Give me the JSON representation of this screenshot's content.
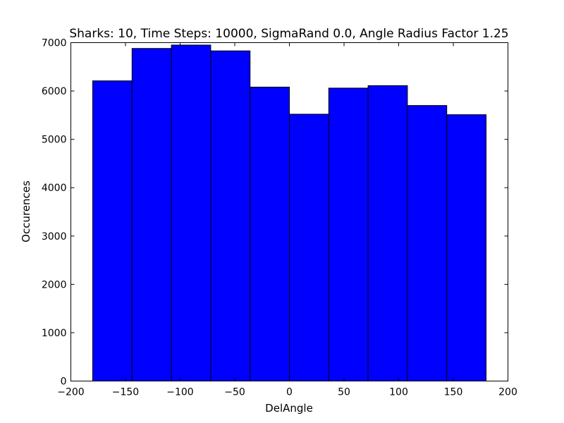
{
  "chart_data": {
    "type": "bar",
    "title": "Sharks: 10, Time Steps: 10000, SigmaRand 0.0, Angle Radius Factor 1.25",
    "xlabel": "DelAngle",
    "ylabel": "Occurences",
    "xlim": [
      -200,
      200
    ],
    "ylim": [
      0,
      7000
    ],
    "xticks": [
      -200,
      -150,
      -100,
      -50,
      0,
      50,
      100,
      150,
      200
    ],
    "xtick_labels": [
      "−200",
      "−150",
      "−100",
      "−50",
      "0",
      "50",
      "100",
      "150",
      "200"
    ],
    "yticks": [
      0,
      1000,
      2000,
      3000,
      4000,
      5000,
      6000,
      7000
    ],
    "ytick_labels": [
      "0",
      "1000",
      "2000",
      "3000",
      "4000",
      "5000",
      "6000",
      "7000"
    ],
    "bins": [
      {
        "x0": -180,
        "x1": -144,
        "value": 6210
      },
      {
        "x0": -144,
        "x1": -108,
        "value": 6880
      },
      {
        "x0": -108,
        "x1": -72,
        "value": 6950
      },
      {
        "x0": -72,
        "x1": -36,
        "value": 6830
      },
      {
        "x0": -36,
        "x1": 0,
        "value": 6080
      },
      {
        "x0": 0,
        "x1": 36,
        "value": 5520
      },
      {
        "x0": 36,
        "x1": 72,
        "value": 6060
      },
      {
        "x0": 72,
        "x1": 108,
        "value": 6110
      },
      {
        "x0": 108,
        "x1": 144,
        "value": 5700
      },
      {
        "x0": 144,
        "x1": 180,
        "value": 5510
      }
    ],
    "bar_color": "#0000ff",
    "grid": false,
    "legend": false
  }
}
